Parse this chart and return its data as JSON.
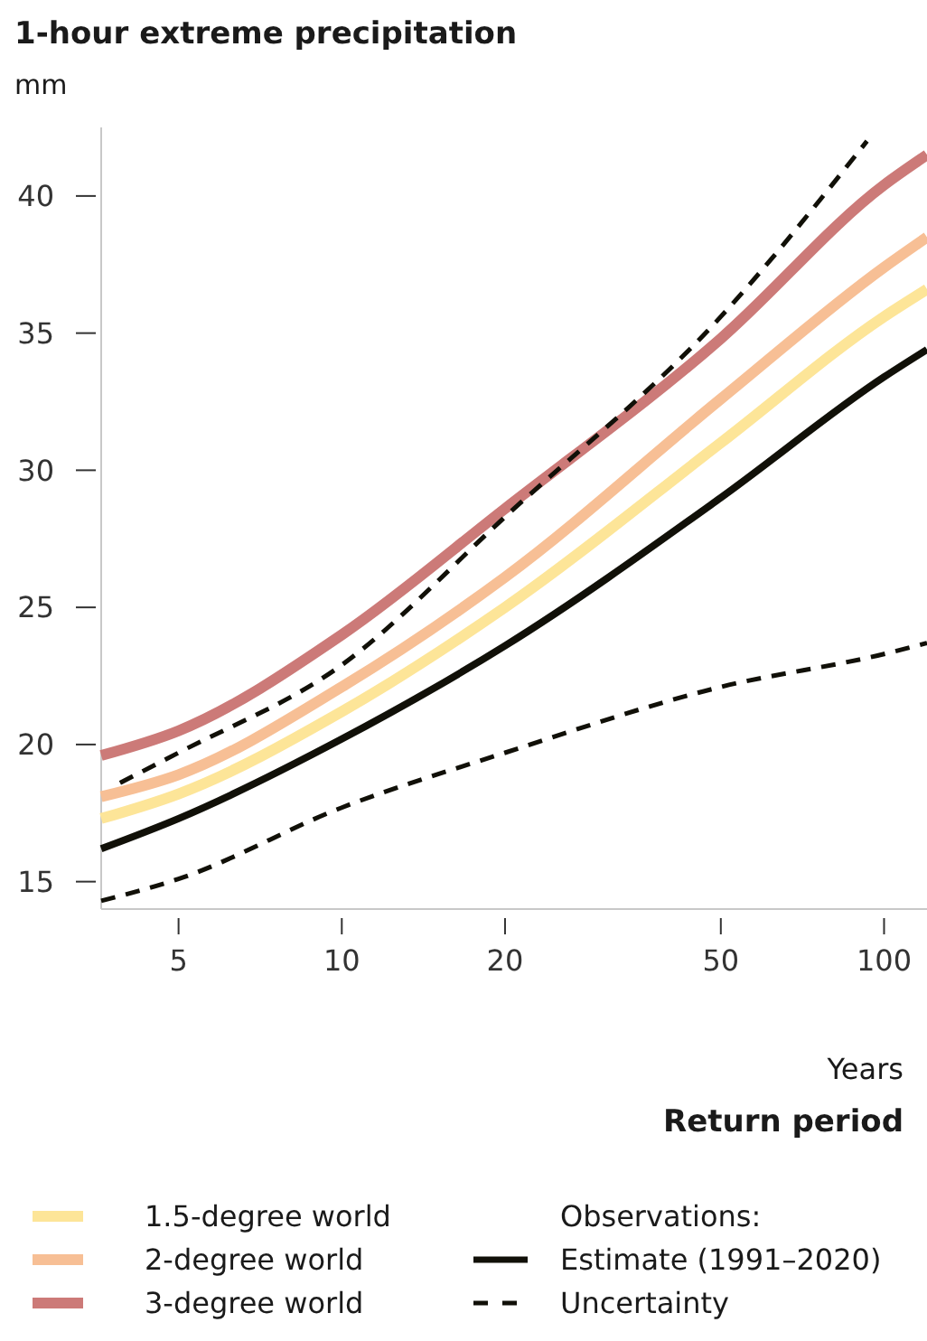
{
  "chart_data": {
    "type": "line",
    "title": "1-hour extreme precipitation",
    "ylabel": "mm",
    "xlabel": "Return period",
    "annotations": [
      "Years"
    ],
    "legend_title": "Observations:",
    "log": "x",
    "grid": false,
    "legend": "bottom",
    "marker": "none",
    "x": [
      3.6,
      5,
      10,
      20,
      50,
      100,
      120
    ],
    "xlim": [
      3.6,
      120
    ],
    "xticks": [
      5,
      10,
      20,
      50,
      100
    ],
    "ylim": [
      14,
      42.5
    ],
    "yticks": [
      15,
      20,
      25,
      30,
      35,
      40
    ],
    "series": [
      {
        "name": "1.5-degree world",
        "color": "#fde598",
        "values": [
          17.3,
          18.2,
          21.2,
          25.0,
          31.0,
          35.6,
          36.6
        ]
      },
      {
        "name": "2-degree world",
        "color": "#f7bf95",
        "values": [
          18.1,
          18.9,
          22.1,
          26.1,
          32.6,
          37.4,
          38.5
        ]
      },
      {
        "name": "3-degree world",
        "color": "#cc7a78",
        "values": [
          19.6,
          20.5,
          24.0,
          28.6,
          34.8,
          40.4,
          41.5
        ]
      },
      {
        "name": "Estimate (1991–2020)",
        "color": "#111008",
        "values": [
          16.2,
          17.3,
          20.2,
          23.6,
          29.0,
          33.4,
          34.4
        ]
      },
      {
        "name": "Uncertainty",
        "color": "#111008",
        "line_style": "dashed",
        "x": [
          3.9,
          5,
          10,
          20,
          50,
          93
        ],
        "values": [
          18.6,
          19.7,
          22.9,
          28.3,
          35.6,
          42.0
        ]
      },
      {
        "color": "#111008",
        "line_style": "dashed",
        "values": [
          14.3,
          15.1,
          17.7,
          19.7,
          22.1,
          23.3,
          23.7
        ]
      }
    ]
  }
}
